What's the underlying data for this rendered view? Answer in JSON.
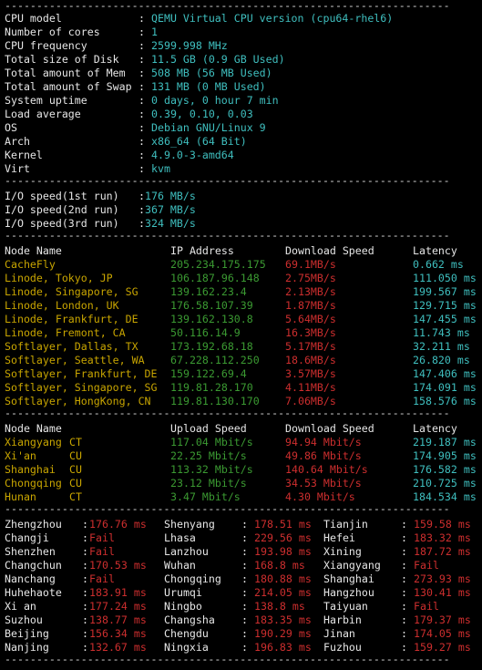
{
  "separator": "----------------------------------------------------------------------",
  "sysinfo": [
    {
      "label": "CPU model",
      "value": "QEMU Virtual CPU version (cpu64-rhel6)"
    },
    {
      "label": "Number of cores",
      "value": "1"
    },
    {
      "label": "CPU frequency",
      "value": "2599.998 MHz"
    },
    {
      "label": "Total size of Disk",
      "value": "11.5 GB (0.9 GB Used)"
    },
    {
      "label": "Total amount of Mem",
      "value": "508 MB (56 MB Used)"
    },
    {
      "label": "Total amount of Swap",
      "value": "131 MB (0 MB Used)"
    },
    {
      "label": "System uptime",
      "value": "0 days, 0 hour 7 min"
    },
    {
      "label": "Load average",
      "value": "0.39, 0.10, 0.03"
    },
    {
      "label": "OS",
      "value": "Debian GNU/Linux 9"
    },
    {
      "label": "Arch",
      "value": "x86_64 (64 Bit)"
    },
    {
      "label": "Kernel",
      "value": "4.9.0-3-amd64"
    },
    {
      "label": "Virt",
      "value": "kvm"
    }
  ],
  "io": [
    {
      "label": "I/O speed(1st run)",
      "value": "176 MB/s"
    },
    {
      "label": "I/O speed(2nd run)",
      "value": "367 MB/s"
    },
    {
      "label": "I/O speed(3rd run)",
      "value": "324 MB/s"
    }
  ],
  "download_header": {
    "node": "Node Name",
    "ip": "IP Address",
    "speed": "Download Speed",
    "latency": "Latency"
  },
  "download": [
    {
      "node": "CacheFly",
      "ip": "205.234.175.175",
      "speed": "69.1MB/s",
      "latency": "0.662 ms"
    },
    {
      "node": "Linode, Tokyo, JP",
      "ip": "106.187.96.148",
      "speed": "2.75MB/s",
      "latency": "111.050 ms"
    },
    {
      "node": "Linode, Singapore, SG",
      "ip": "139.162.23.4",
      "speed": "2.13MB/s",
      "latency": "199.567 ms"
    },
    {
      "node": "Linode, London, UK",
      "ip": "176.58.107.39",
      "speed": "1.87MB/s",
      "latency": "129.715 ms"
    },
    {
      "node": "Linode, Frankfurt, DE",
      "ip": "139.162.130.8",
      "speed": "5.64MB/s",
      "latency": "147.455 ms"
    },
    {
      "node": "Linode, Fremont, CA",
      "ip": "50.116.14.9",
      "speed": "16.3MB/s",
      "latency": "11.743 ms"
    },
    {
      "node": "Softlayer, Dallas, TX",
      "ip": "173.192.68.18",
      "speed": "5.17MB/s",
      "latency": "32.211 ms"
    },
    {
      "node": "Softlayer, Seattle, WA",
      "ip": "67.228.112.250",
      "speed": "18.6MB/s",
      "latency": "26.820 ms"
    },
    {
      "node": "Softlayer, Frankfurt, DE",
      "ip": "159.122.69.4",
      "speed": "3.57MB/s",
      "latency": "147.406 ms"
    },
    {
      "node": "Softlayer, Singapore, SG",
      "ip": "119.81.28.170",
      "speed": "4.11MB/s",
      "latency": "174.091 ms"
    },
    {
      "node": "Softlayer, HongKong, CN",
      "ip": "119.81.130.170",
      "speed": "7.06MB/s",
      "latency": "158.576 ms"
    }
  ],
  "upload_header": {
    "node": "Node Name",
    "up": "Upload Speed",
    "down": "Download Speed",
    "latency": "Latency"
  },
  "upload": [
    {
      "city": "Xiangyang",
      "isp": "CT",
      "up": "117.04 Mbit/s",
      "down": "94.94 Mbit/s",
      "latency": "219.187 ms"
    },
    {
      "city": "Xi'an",
      "isp": "CU",
      "up": "22.25 Mbit/s",
      "down": "49.86 Mbit/s",
      "latency": "174.905 ms"
    },
    {
      "city": "Shanghai",
      "isp": "CU",
      "up": "113.32 Mbit/s",
      "down": "140.64 Mbit/s",
      "latency": "176.582 ms"
    },
    {
      "city": "Chongqing",
      "isp": "CU",
      "up": "23.12 Mbit/s",
      "down": "34.53 Mbit/s",
      "latency": "210.725 ms"
    },
    {
      "city": "Hunan",
      "isp": "CT",
      "up": "3.47 Mbit/s",
      "down": "4.30 Mbit/s",
      "latency": "184.534 ms"
    }
  ],
  "ping": [
    [
      {
        "city": "Zhengzhou",
        "value": "176.76 ms"
      },
      {
        "city": "Shenyang",
        "value": "178.51 ms"
      },
      {
        "city": "Tianjin",
        "value": "159.58 ms"
      }
    ],
    [
      {
        "city": "Changji",
        "value": "Fail"
      },
      {
        "city": "Lhasa",
        "value": "229.56 ms"
      },
      {
        "city": "Hefei",
        "value": "183.32 ms"
      }
    ],
    [
      {
        "city": "Shenzhen",
        "value": "Fail"
      },
      {
        "city": "Lanzhou",
        "value": "193.98 ms"
      },
      {
        "city": "Xining",
        "value": "187.72 ms"
      }
    ],
    [
      {
        "city": "Changchun",
        "value": "170.53 ms"
      },
      {
        "city": "Wuhan",
        "value": "168.8 ms"
      },
      {
        "city": "Xiangyang",
        "value": "Fail"
      }
    ],
    [
      {
        "city": "Nanchang",
        "value": "Fail"
      },
      {
        "city": "Chongqing",
        "value": "180.88 ms"
      },
      {
        "city": "Shanghai",
        "value": "273.93 ms"
      }
    ],
    [
      {
        "city": "Huhehaote",
        "value": "183.91 ms"
      },
      {
        "city": "Urumqi",
        "value": "214.05 ms"
      },
      {
        "city": "Hangzhou",
        "value": "130.41 ms"
      }
    ],
    [
      {
        "city": "Xi an",
        "value": "177.24 ms"
      },
      {
        "city": "Ningbo",
        "value": "138.8 ms"
      },
      {
        "city": "Taiyuan",
        "value": "Fail"
      }
    ],
    [
      {
        "city": "Suzhou",
        "value": "138.77 ms"
      },
      {
        "city": "Changsha",
        "value": "183.35 ms"
      },
      {
        "city": "Harbin",
        "value": "179.37 ms"
      }
    ],
    [
      {
        "city": "Beijing",
        "value": "156.34 ms"
      },
      {
        "city": "Chengdu",
        "value": "190.29 ms"
      },
      {
        "city": "Jinan",
        "value": "174.05 ms"
      }
    ],
    [
      {
        "city": "Nanjing",
        "value": "132.67 ms"
      },
      {
        "city": "Ningxia",
        "value": "196.83 ms"
      },
      {
        "city": "Fuzhou",
        "value": "159.27 ms"
      }
    ]
  ],
  "colors": {
    "label": "#d6d6d6",
    "value": "#3fbfbf",
    "ip": "#3b9a32",
    "speed": "#cc2e2e",
    "node": "#c8a500",
    "background": "#000000"
  }
}
